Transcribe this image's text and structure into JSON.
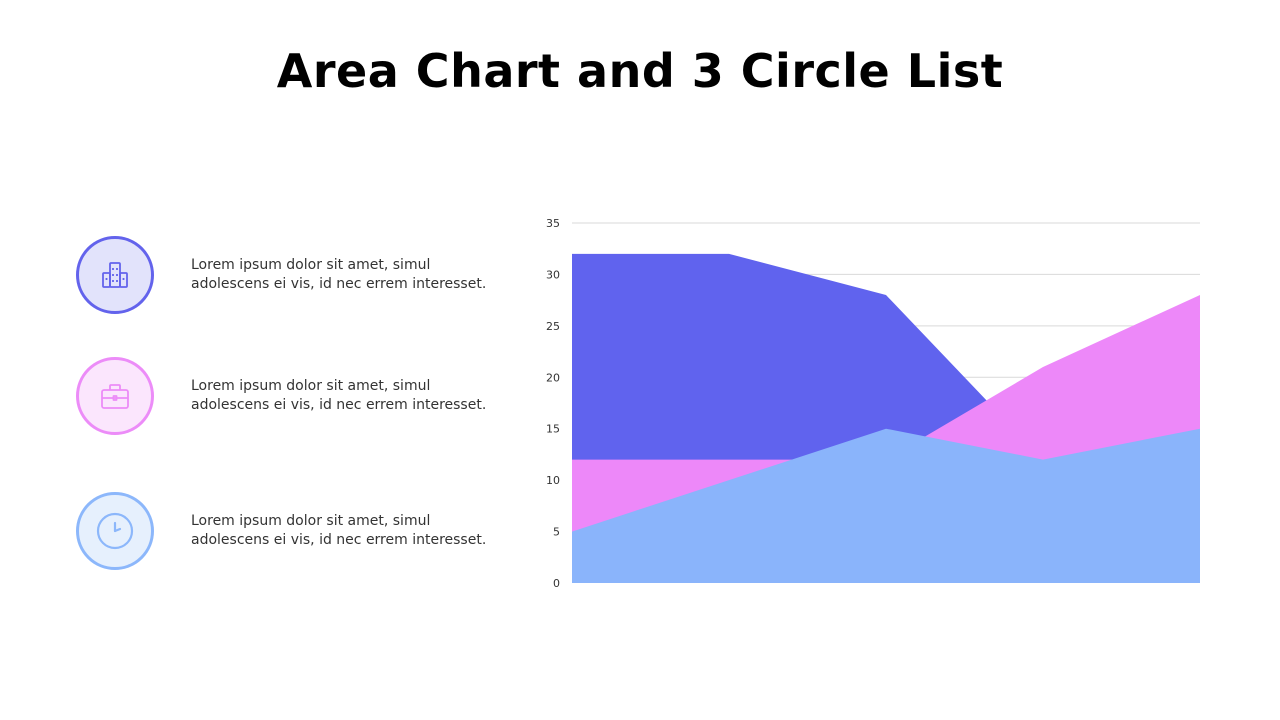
{
  "title": "Area Chart and 3 Circle List",
  "list": [
    {
      "icon": "building-icon",
      "line1": "Lorem ipsum dolor sit amet, simul",
      "line2": "adolescens ei vis, id nec errem interesset.",
      "stroke": "#6363ec",
      "fill": "#e2e3fb"
    },
    {
      "icon": "briefcase-icon",
      "line1": "Lorem ipsum dolor sit amet, simul",
      "line2": "adolescens ei vis, id nec errem interesset.",
      "stroke": "#ec8cf8",
      "fill": "#fbe6fd"
    },
    {
      "icon": "clock-icon",
      "line1": "Lorem ipsum dolor sit amet, simul",
      "line2": "adolescens ei vis, id nec errem interesset.",
      "stroke": "#8cb7fb",
      "fill": "#e6f0fd"
    }
  ],
  "chart_data": {
    "type": "area",
    "x": [
      1,
      2,
      3,
      4,
      5
    ],
    "ylim": [
      0,
      35
    ],
    "yticks": [
      0,
      5,
      10,
      15,
      20,
      25,
      30,
      35
    ],
    "grid": true,
    "legend": "none",
    "series": [
      {
        "values": [
          32,
          32,
          28,
          12,
          12
        ],
        "color": "#6063ee"
      },
      {
        "values": [
          12,
          12,
          12,
          21,
          28
        ],
        "color": "#ed88f9"
      },
      {
        "values": [
          5,
          10,
          15,
          12,
          15
        ],
        "color": "#8ab4fb"
      }
    ]
  }
}
